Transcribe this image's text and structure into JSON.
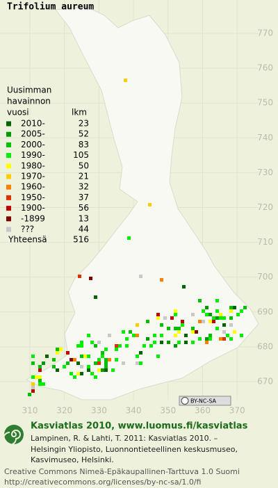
{
  "title": "Trifolium aureum",
  "legend": {
    "heading": [
      "Uusimman",
      "havainnon",
      "vuosi"
    ],
    "count_heading": "lkm",
    "items": [
      {
        "label": "2010-",
        "color": "#006400",
        "count": 23
      },
      {
        "label": "2005-",
        "color": "#009a00",
        "count": 52
      },
      {
        "label": "2000-",
        "color": "#00c000",
        "count": 83
      },
      {
        "label": "1990-",
        "color": "#00ee00",
        "count": 105
      },
      {
        "label": "1980-",
        "color": "#ffff00",
        "count": 50
      },
      {
        "label": "1970-",
        "color": "#ffcc00",
        "count": 21
      },
      {
        "label": "1960-",
        "color": "#ff8000",
        "count": 32
      },
      {
        "label": "1950-",
        "color": "#e03000",
        "count": 37
      },
      {
        "label": "1900-",
        "color": "#c00000",
        "count": 56
      },
      {
        "label": "-1899",
        "color": "#800000",
        "count": 13
      },
      {
        "label": "???",
        "color": "#c8c8c8",
        "count": 44
      }
    ],
    "total_label": "Yhteensä",
    "total": 516
  },
  "axes": {
    "x_ticks": [
      310,
      320,
      330,
      340,
      350,
      360,
      370
    ],
    "y_ticks": [
      770,
      760,
      750,
      740,
      730,
      720,
      710,
      700,
      690,
      680,
      670
    ]
  },
  "license_badge": "BY-NC-SA",
  "footer": {
    "site": "Kasviatlas 2010, www.luomus.fi/kasviatlas",
    "citation": [
      "Lampinen, R. & Lahti, T. 2011: Kasviatlas 2010. –",
      "Helsingin Yliopisto, Luonnontieteellinen keskusmuseo,",
      "Kasvimuseo, Helsinki."
    ],
    "license": [
      "Creative Commons Nimeä-Epäkaupallinen-Tarttuva 1.0 Suomi",
      "http://creativecommons.org/licenses/by-nc-sa/1.0/fi"
    ]
  }
}
